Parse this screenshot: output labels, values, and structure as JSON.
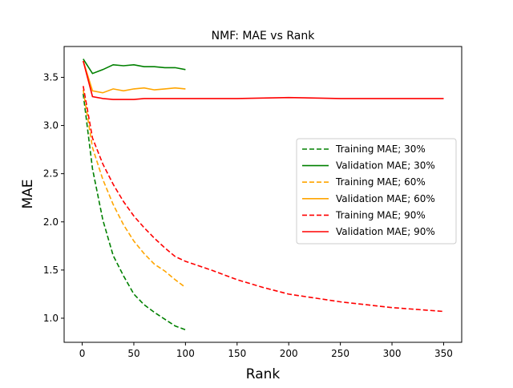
{
  "chart_data": {
    "type": "line",
    "title": "NMF: MAE vs Rank",
    "xlabel": "Rank",
    "ylabel": "MAE",
    "xlim": [
      -17.5,
      367.5
    ],
    "ylim": [
      0.75,
      3.82
    ],
    "xticks": [
      0,
      50,
      100,
      150,
      200,
      250,
      300,
      350
    ],
    "yticks": [
      1.0,
      1.5,
      2.0,
      2.5,
      3.0,
      3.5
    ],
    "xtick_labels": [
      "0",
      "50",
      "100",
      "150",
      "200",
      "250",
      "300",
      "350"
    ],
    "ytick_labels": [
      "1.0",
      "1.5",
      "2.0",
      "2.5",
      "3.0",
      "3.5"
    ],
    "grid": false,
    "legend_position": "center-right",
    "series": [
      {
        "name": "Training MAE; 30%",
        "color": "#008000",
        "linestyle": "dashed",
        "x": [
          1,
          10,
          20,
          30,
          40,
          50,
          60,
          70,
          80,
          90,
          100
        ],
        "y": [
          3.33,
          2.55,
          2.02,
          1.65,
          1.44,
          1.25,
          1.14,
          1.06,
          0.99,
          0.92,
          0.88
        ]
      },
      {
        "name": "Validation MAE; 30%",
        "color": "#008000",
        "linestyle": "solid",
        "x": [
          1,
          10,
          20,
          30,
          40,
          50,
          60,
          70,
          80,
          90,
          100
        ],
        "y": [
          3.69,
          3.54,
          3.58,
          3.63,
          3.62,
          3.63,
          3.61,
          3.61,
          3.6,
          3.6,
          3.58
        ]
      },
      {
        "name": "Training MAE; 60%",
        "color": "#ffa500",
        "linestyle": "dashed",
        "x": [
          1,
          10,
          20,
          30,
          40,
          50,
          60,
          70,
          80,
          90,
          100
        ],
        "y": [
          3.37,
          2.77,
          2.44,
          2.18,
          1.97,
          1.8,
          1.67,
          1.56,
          1.49,
          1.4,
          1.32
        ]
      },
      {
        "name": "Validation MAE; 60%",
        "color": "#ffa500",
        "linestyle": "solid",
        "x": [
          1,
          10,
          20,
          30,
          40,
          50,
          60,
          70,
          80,
          90,
          100
        ],
        "y": [
          3.67,
          3.36,
          3.34,
          3.38,
          3.36,
          3.38,
          3.39,
          3.37,
          3.38,
          3.39,
          3.38
        ]
      },
      {
        "name": "Training MAE; 90%",
        "color": "#ff0000",
        "linestyle": "dashed",
        "x": [
          1,
          10,
          20,
          30,
          40,
          50,
          60,
          70,
          80,
          90,
          100,
          125,
          150,
          175,
          200,
          225,
          250,
          275,
          300,
          325,
          350
        ],
        "y": [
          3.41,
          2.87,
          2.6,
          2.39,
          2.21,
          2.06,
          1.94,
          1.83,
          1.73,
          1.64,
          1.59,
          1.5,
          1.4,
          1.32,
          1.25,
          1.21,
          1.17,
          1.14,
          1.11,
          1.09,
          1.07
        ]
      },
      {
        "name": "Validation MAE; 90%",
        "color": "#ff0000",
        "linestyle": "solid",
        "x": [
          1,
          10,
          20,
          30,
          40,
          50,
          60,
          70,
          80,
          90,
          100,
          150,
          200,
          250,
          300,
          350
        ],
        "y": [
          3.67,
          3.3,
          3.28,
          3.27,
          3.27,
          3.27,
          3.28,
          3.28,
          3.28,
          3.28,
          3.28,
          3.28,
          3.29,
          3.28,
          3.28,
          3.28
        ]
      }
    ]
  }
}
